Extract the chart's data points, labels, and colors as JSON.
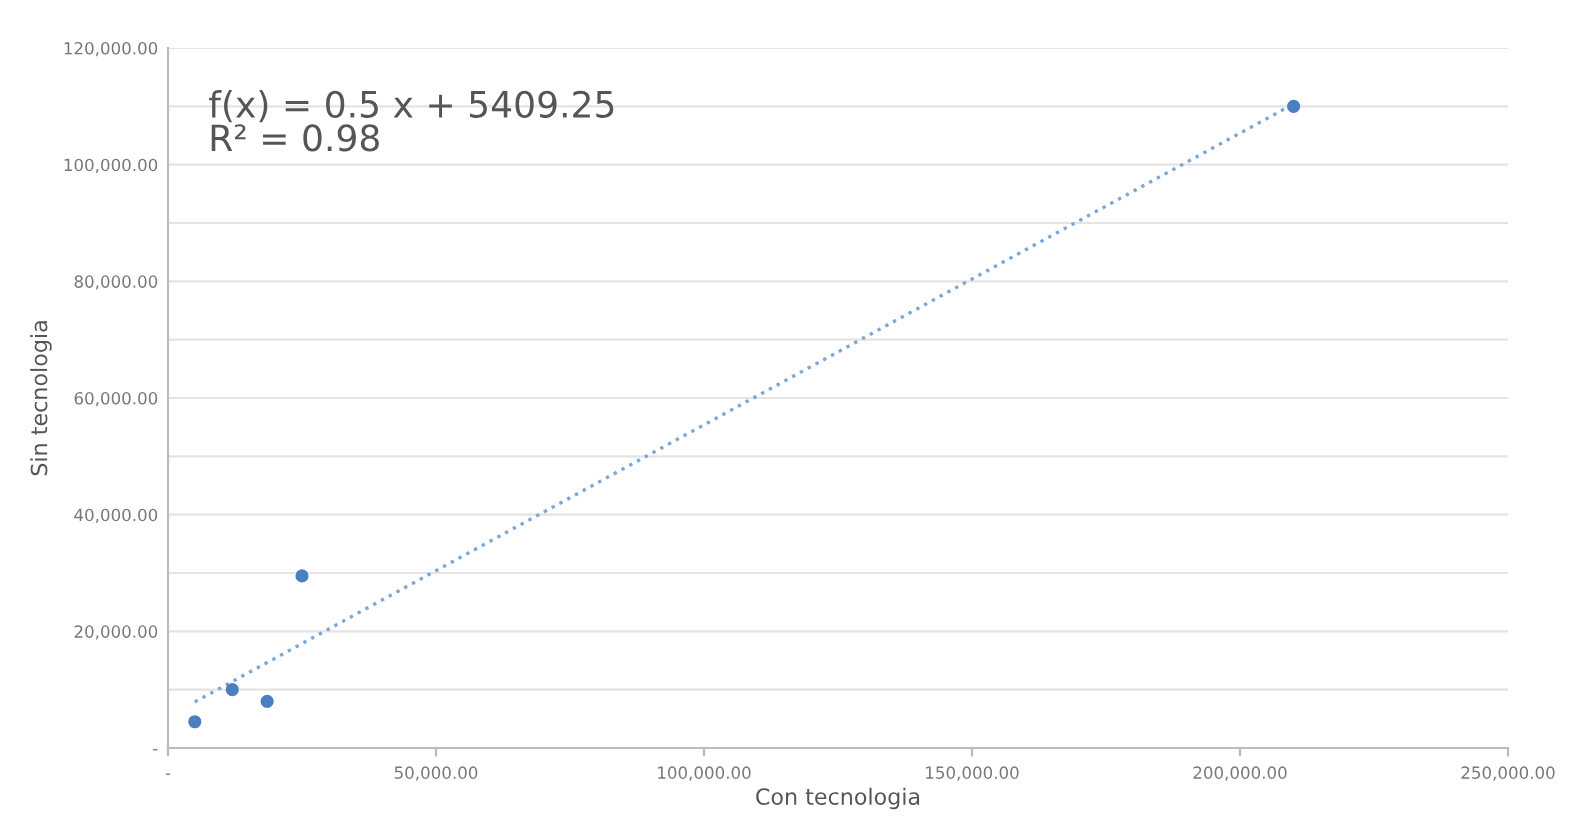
{
  "chart_data": {
    "type": "scatter",
    "xlabel": "Con tecnologia",
    "ylabel": "Sin tecnologia",
    "annotations": [
      "f(x) = 0.5 x + 5409.25\nR² = 0.98"
    ],
    "series": [
      {
        "color": "#4a7fc1",
        "marker": "circle",
        "x": [
          5000,
          12000,
          18500,
          25000,
          210000
        ],
        "values": [
          4500,
          10000,
          8000,
          29500,
          110000
        ]
      },
      {
        "type": "line",
        "color": "#7aa7d8",
        "line_style": "dotted",
        "marker": "none",
        "x": [
          5000,
          210000
        ],
        "values": [
          7900,
          110400
        ]
      }
    ],
    "xlim": [
      0,
      250000
    ],
    "xticks": [
      {
        "value": 0,
        "label": "-"
      },
      {
        "value": 50000,
        "label": "50,000.00"
      },
      {
        "value": 100000,
        "label": "100,000.00"
      },
      {
        "value": 150000,
        "label": "150,000.00"
      },
      {
        "value": 200000,
        "label": "200,000.00"
      },
      {
        "value": 250000,
        "label": "250,000.00"
      }
    ],
    "ylim": [
      0,
      120000
    ],
    "yticks": [
      {
        "value": 0,
        "label": "-"
      },
      {
        "value": 10000,
        "label": null
      },
      {
        "value": 20000,
        "label": "20,000.00"
      },
      {
        "value": 30000,
        "label": null
      },
      {
        "value": 40000,
        "label": "40,000.00"
      },
      {
        "value": 50000,
        "label": null
      },
      {
        "value": 60000,
        "label": "60,000.00"
      },
      {
        "value": 70000,
        "label": null
      },
      {
        "value": 80000,
        "label": "80,000.00"
      },
      {
        "value": 90000,
        "label": null
      },
      {
        "value": 100000,
        "label": "100,000.00"
      },
      {
        "value": 110000,
        "label": null
      },
      {
        "value": 120000,
        "label": "120,000.00"
      }
    ],
    "grid": "y",
    "legend": false
  }
}
